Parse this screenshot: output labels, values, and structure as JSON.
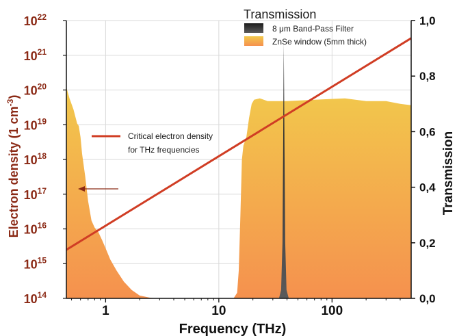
{
  "chart_data": {
    "type": "area",
    "x_axis": {
      "label": "Frequency (THz)",
      "scale": "log",
      "range": [
        0.45,
        500
      ],
      "ticks": [
        {
          "value": 1,
          "label": "1"
        },
        {
          "value": 10,
          "label": "10"
        },
        {
          "value": 100,
          "label": "100"
        }
      ]
    },
    "y_left": {
      "label": "Electron density (1 cm",
      "label_sup": "-3",
      "label_close": ")",
      "scale": "log",
      "range": [
        100000000000000.0,
        1e+22
      ],
      "ticks": [
        {
          "value": 100000000000000.0,
          "base": "10",
          "exp": "14"
        },
        {
          "value": 1000000000000000.0,
          "base": "10",
          "exp": "15"
        },
        {
          "value": 1e+16,
          "base": "10",
          "exp": "16"
        },
        {
          "value": 1e+17,
          "base": "10",
          "exp": "17"
        },
        {
          "value": 1e+18,
          "base": "10",
          "exp": "18"
        },
        {
          "value": 1e+19,
          "base": "10",
          "exp": "19"
        },
        {
          "value": 1e+20,
          "base": "10",
          "exp": "20"
        },
        {
          "value": 1e+21,
          "base": "10",
          "exp": "21"
        },
        {
          "value": 1e+22,
          "base": "10",
          "exp": "22"
        }
      ]
    },
    "y_right": {
      "label": "Transmission",
      "scale": "linear",
      "range": [
        0,
        1
      ],
      "ticks": [
        {
          "value": 0,
          "label": "0,0"
        },
        {
          "value": 0.2,
          "label": "0,2"
        },
        {
          "value": 0.4,
          "label": "0,4"
        },
        {
          "value": 0.6,
          "label": "0,6"
        },
        {
          "value": 0.8,
          "label": "0,8"
        },
        {
          "value": 1,
          "label": "1,0"
        }
      ]
    },
    "legend_title": "Transmission",
    "series": [
      {
        "name": "ZnSe window (5mm thick)",
        "kind": "area",
        "axis": "right",
        "color_top": "#f2c94c",
        "color_bottom": "#f5914e",
        "points": [
          [
            0.45,
            0.76
          ],
          [
            0.48,
            0.72
          ],
          [
            0.52,
            0.68
          ],
          [
            0.56,
            0.63
          ],
          [
            0.58,
            0.62
          ],
          [
            0.6,
            0.58
          ],
          [
            0.62,
            0.52
          ],
          [
            0.66,
            0.44
          ],
          [
            0.7,
            0.35
          ],
          [
            0.75,
            0.28
          ],
          [
            0.8,
            0.255
          ],
          [
            0.86,
            0.24
          ],
          [
            0.93,
            0.21
          ],
          [
            1.0,
            0.18
          ],
          [
            1.1,
            0.14
          ],
          [
            1.25,
            0.1
          ],
          [
            1.45,
            0.06
          ],
          [
            1.7,
            0.03
          ],
          [
            2.0,
            0.01
          ],
          [
            2.5,
            0.002
          ],
          [
            3.0,
            0.0
          ],
          [
            13.5,
            0.0
          ],
          [
            14.5,
            0.02
          ],
          [
            15.0,
            0.1
          ],
          [
            15.5,
            0.3
          ],
          [
            16.0,
            0.5
          ],
          [
            16.5,
            0.55
          ],
          [
            17.5,
            0.58
          ],
          [
            18.5,
            0.65
          ],
          [
            19.5,
            0.7
          ],
          [
            20.5,
            0.715
          ],
          [
            23,
            0.72
          ],
          [
            27,
            0.71
          ],
          [
            40,
            0.71
          ],
          [
            70,
            0.715
          ],
          [
            130,
            0.72
          ],
          [
            200,
            0.71
          ],
          [
            300,
            0.71
          ],
          [
            400,
            0.7
          ],
          [
            500,
            0.695
          ]
        ]
      },
      {
        "name": "8 μm Band-Pass Filter",
        "kind": "area",
        "axis": "right",
        "color_top": "#1c1c1c",
        "color_bottom": "#5a5a5a",
        "points": [
          [
            34.0,
            0.0
          ],
          [
            35.5,
            0.03
          ],
          [
            36.5,
            0.2
          ],
          [
            37.0,
            0.55
          ],
          [
            37.5,
            0.92
          ],
          [
            38.0,
            0.55
          ],
          [
            38.6,
            0.2
          ],
          [
            39.6,
            0.03
          ],
          [
            41.5,
            0.0
          ]
        ]
      },
      {
        "name": "Critical electron density for THz frequencies",
        "name_line1": "Critical electron density",
        "name_line2": "for THz frequencies",
        "kind": "line",
        "axis": "left",
        "color": "#d03d24",
        "points": [
          [
            0.45,
            2500000000000000.0
          ],
          [
            500,
            3.1e+21
          ]
        ]
      }
    ],
    "annotation": {
      "kind": "arrow",
      "points_to": "left axis",
      "color": "#8b2a16"
    },
    "grid": true
  },
  "colors": {
    "left_axis": "#8b2a16",
    "right_axis": "#111111",
    "grid": "#d9d9d9"
  }
}
